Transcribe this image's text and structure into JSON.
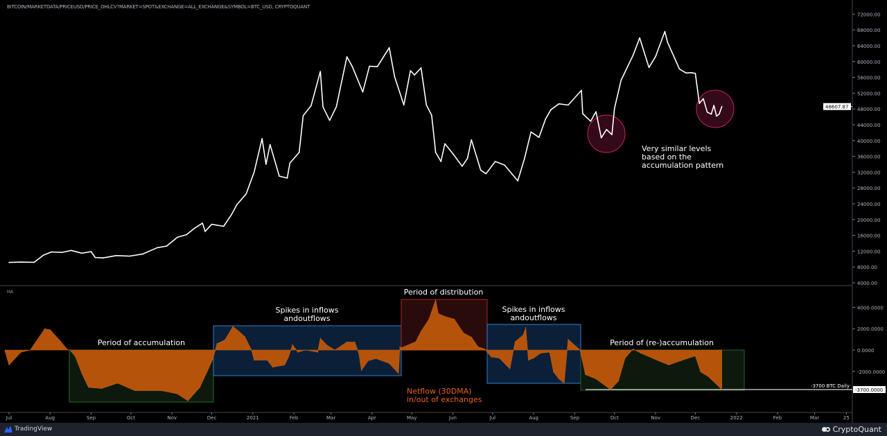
{
  "header": {
    "source": "BITCOIN/MARKETDATA/PRICEUSD/PRICE_OHLCV?MARKET=SPOT&EXCHANGE=ALL_EXCHANGE&SYMBOL=BTC_USD, CRYPTOQUANT"
  },
  "indicator_label": "MA",
  "footer": {
    "left_brand": "TradingView",
    "right_brand": "CryptoQuant"
  },
  "annotations": {
    "accumulation": "Period of accumulation",
    "spikes1_line1": "Spikes in inflows",
    "spikes1_line2": "andoutflows",
    "distribution": "Period of distribution",
    "spikes2_line1": "Spikes in inflows",
    "spikes2_line2": "andoutflows",
    "reaccumulation": "Period of (re-)accumulation",
    "netflow_line1": "Netflow (30DMA)",
    "netflow_line2": "in/out of exchanges",
    "note_line1": "Very similar levels",
    "note_line2": "based on the",
    "note_line3": "accumulation pattern",
    "level_label": "-3700 BTC Daily"
  },
  "colors": {
    "background": "#000000",
    "price_line": "#ffffff",
    "netflow_fill": "#b5530b",
    "netflow_text": "#e8601c",
    "accum_box": "#0c190c",
    "spike_box": "#0b2038",
    "dist_box": "#2a0b0b",
    "circle": "#3a0a1c"
  },
  "chart_data": [
    {
      "type": "line",
      "title": "",
      "ylim": [
        4000,
        72000
      ],
      "y_ticks": [
        "72000.00",
        "68000.00",
        "64000.00",
        "60000.00",
        "56000.00",
        "52000.00",
        "48000.00",
        "44000.00",
        "40000.00",
        "36000.00",
        "32000.00",
        "28000.00",
        "24000.00",
        "20000.00",
        "16000.00",
        "12000.00",
        "8000.00",
        "4000.00"
      ],
      "last_value_label": "48607.87",
      "series": [
        {
          "values": [
            [
              "2020-07-01",
              9150
            ],
            [
              "2020-07-10",
              9250
            ],
            [
              "2020-07-20",
              9200
            ],
            [
              "2020-07-27",
              11000
            ],
            [
              "2020-08-02",
              11800
            ],
            [
              "2020-08-10",
              11700
            ],
            [
              "2020-08-17",
              12200
            ],
            [
              "2020-08-25",
              11500
            ],
            [
              "2020-09-01",
              11900
            ],
            [
              "2020-09-04",
              10400
            ],
            [
              "2020-09-10",
              10300
            ],
            [
              "2020-09-20",
              10900
            ],
            [
              "2020-09-30",
              10750
            ],
            [
              "2020-10-10",
              11300
            ],
            [
              "2020-10-21",
              12900
            ],
            [
              "2020-10-28",
              13300
            ],
            [
              "2020-11-05",
              15500
            ],
            [
              "2020-11-12",
              16200
            ],
            [
              "2020-11-18",
              17800
            ],
            [
              "2020-11-24",
              19100
            ],
            [
              "2020-11-26",
              17000
            ],
            [
              "2020-12-01",
              18800
            ],
            [
              "2020-12-10",
              18300
            ],
            [
              "2020-12-16",
              21300
            ],
            [
              "2020-12-20",
              23800
            ],
            [
              "2020-12-27",
              26500
            ],
            [
              "2021-01-02",
              32000
            ],
            [
              "2021-01-08",
              40500
            ],
            [
              "2021-01-11",
              34000
            ],
            [
              "2021-01-14",
              39000
            ],
            [
              "2021-01-21",
              31000
            ],
            [
              "2021-01-27",
              30500
            ],
            [
              "2021-01-29",
              34300
            ],
            [
              "2021-02-05",
              37000
            ],
            [
              "2021-02-08",
              46300
            ],
            [
              "2021-02-14",
              48800
            ],
            [
              "2021-02-21",
              57500
            ],
            [
              "2021-02-23",
              48500
            ],
            [
              "2021-02-28",
              45100
            ],
            [
              "2021-03-05",
              48500
            ],
            [
              "2021-03-13",
              61200
            ],
            [
              "2021-03-17",
              58800
            ],
            [
              "2021-03-25",
              52300
            ],
            [
              "2021-03-30",
              58800
            ],
            [
              "2021-04-05",
              58700
            ],
            [
              "2021-04-14",
              63500
            ],
            [
              "2021-04-18",
              56200
            ],
            [
              "2021-04-25",
              49000
            ],
            [
              "2021-04-30",
              57700
            ],
            [
              "2021-05-03",
              56600
            ],
            [
              "2021-05-08",
              58400
            ],
            [
              "2021-05-12",
              49000
            ],
            [
              "2021-05-16",
              46400
            ],
            [
              "2021-05-19",
              37000
            ],
            [
              "2021-05-23",
              34700
            ],
            [
              "2021-05-26",
              39200
            ],
            [
              "2021-06-01",
              36700
            ],
            [
              "2021-06-08",
              33500
            ],
            [
              "2021-06-12",
              35500
            ],
            [
              "2021-06-15",
              40200
            ],
            [
              "2021-06-22",
              32500
            ],
            [
              "2021-06-26",
              31600
            ],
            [
              "2021-07-03",
              34700
            ],
            [
              "2021-07-10",
              33800
            ],
            [
              "2021-07-20",
              29800
            ],
            [
              "2021-07-25",
              35400
            ],
            [
              "2021-07-30",
              42200
            ],
            [
              "2021-08-05",
              40800
            ],
            [
              "2021-08-10",
              45500
            ],
            [
              "2021-08-14",
              47800
            ],
            [
              "2021-08-20",
              49300
            ],
            [
              "2021-08-27",
              49000
            ],
            [
              "2021-09-06",
              52700
            ],
            [
              "2021-09-07",
              46800
            ],
            [
              "2021-09-13",
              44900
            ],
            [
              "2021-09-17",
              47300
            ],
            [
              "2021-09-21",
              40700
            ],
            [
              "2021-09-25",
              42800
            ],
            [
              "2021-09-29",
              41500
            ],
            [
              "2021-10-01",
              48200
            ],
            [
              "2021-10-06",
              55300
            ],
            [
              "2021-10-15",
              61600
            ],
            [
              "2021-10-20",
              66000
            ],
            [
              "2021-10-27",
              58500
            ],
            [
              "2021-11-01",
              61300
            ],
            [
              "2021-11-08",
              67600
            ],
            [
              "2021-11-10",
              64900
            ],
            [
              "2021-11-16",
              60400
            ],
            [
              "2021-11-19",
              58100
            ],
            [
              "2021-11-24",
              57100
            ],
            [
              "2021-11-28",
              57200
            ],
            [
              "2021-12-01",
              57000
            ],
            [
              "2021-12-04",
              49400
            ],
            [
              "2021-12-07",
              50600
            ],
            [
              "2021-12-10",
              47200
            ],
            [
              "2021-12-13",
              46700
            ],
            [
              "2021-12-15",
              48900
            ],
            [
              "2021-12-17",
              46200
            ],
            [
              "2021-12-19",
              46700
            ],
            [
              "2021-12-21",
              48607.87
            ]
          ]
        }
      ]
    },
    {
      "type": "area",
      "title": "",
      "ylim": [
        -4000,
        4000
      ],
      "y_ticks": [
        "4000.0000",
        "2000.0000",
        "0.0000",
        "-2000.0000"
      ],
      "last_value_label": "-3700.0000",
      "series": [
        {
          "values": [
            [
              "2020-06-28",
              -100
            ],
            [
              "2020-07-01",
              -1400
            ],
            [
              "2020-07-10",
              -200
            ],
            [
              "2020-07-17",
              0
            ],
            [
              "2020-07-28",
              2000
            ],
            [
              "2020-08-01",
              1900
            ],
            [
              "2020-08-08",
              950
            ],
            [
              "2020-08-14",
              50
            ],
            [
              "2020-08-16",
              0
            ],
            [
              "2020-08-20",
              -600
            ],
            [
              "2020-08-25",
              -2200
            ],
            [
              "2020-08-30",
              -3500
            ],
            [
              "2020-09-09",
              -3600
            ],
            [
              "2020-09-21",
              -3100
            ],
            [
              "2020-10-04",
              -3800
            ],
            [
              "2020-10-24",
              -3800
            ],
            [
              "2020-11-05",
              -4100
            ],
            [
              "2020-11-13",
              -4750
            ],
            [
              "2020-11-22",
              -3500
            ],
            [
              "2020-11-28",
              -1900
            ],
            [
              "2020-12-02",
              -800
            ],
            [
              "2020-12-05",
              600
            ],
            [
              "2020-12-11",
              950
            ],
            [
              "2020-12-17",
              2200
            ],
            [
              "2020-12-22",
              1700
            ],
            [
              "2020-12-26",
              1250
            ],
            [
              "2020-12-31",
              0
            ],
            [
              "2021-01-02",
              -950
            ],
            [
              "2021-01-12",
              -950
            ],
            [
              "2021-01-16",
              -1600
            ],
            [
              "2021-01-25",
              -1400
            ],
            [
              "2021-01-28",
              -630
            ],
            [
              "2021-01-31",
              500
            ],
            [
              "2021-02-04",
              -200
            ],
            [
              "2021-02-10",
              0
            ],
            [
              "2021-02-19",
              -200
            ],
            [
              "2021-02-21",
              1100
            ],
            [
              "2021-02-26",
              450
            ],
            [
              "2021-03-04",
              0
            ],
            [
              "2021-03-13",
              750
            ],
            [
              "2021-03-19",
              750
            ],
            [
              "2021-03-22",
              -300
            ],
            [
              "2021-03-24",
              -1900
            ],
            [
              "2021-03-29",
              -1000
            ],
            [
              "2021-04-04",
              -800
            ],
            [
              "2021-04-14",
              -1250
            ],
            [
              "2021-04-21",
              -2200
            ],
            [
              "2021-04-22",
              300
            ],
            [
              "2021-04-23",
              200
            ],
            [
              "2021-05-04",
              780
            ],
            [
              "2021-05-08",
              1750
            ],
            [
              "2021-05-14",
              2900
            ],
            [
              "2021-05-19",
              4700
            ],
            [
              "2021-05-21",
              3400
            ],
            [
              "2021-05-27",
              3100
            ],
            [
              "2021-06-02",
              2900
            ],
            [
              "2021-06-09",
              1600
            ],
            [
              "2021-06-15",
              1200
            ],
            [
              "2021-06-20",
              300
            ],
            [
              "2021-06-25",
              100
            ],
            [
              "2021-06-30",
              -650
            ],
            [
              "2021-07-06",
              -750
            ],
            [
              "2021-07-14",
              -1750
            ],
            [
              "2021-07-18",
              780
            ],
            [
              "2021-07-24",
              1400
            ],
            [
              "2021-07-26",
              2100
            ],
            [
              "2021-07-28",
              -950
            ],
            [
              "2021-08-01",
              -750
            ],
            [
              "2021-08-06",
              -300
            ],
            [
              "2021-08-13",
              -200
            ],
            [
              "2021-08-16",
              -2050
            ],
            [
              "2021-08-20",
              -2700
            ],
            [
              "2021-08-24",
              -3100
            ],
            [
              "2021-08-27",
              1000
            ],
            [
              "2021-08-31",
              550
            ],
            [
              "2021-09-05",
              0
            ],
            [
              "2021-09-09",
              -2300
            ],
            [
              "2021-09-17",
              -2700
            ],
            [
              "2021-09-28",
              -3700
            ],
            [
              "2021-10-04",
              -2900
            ],
            [
              "2021-10-09",
              -750
            ],
            [
              "2021-10-15",
              100
            ],
            [
              "2021-10-21",
              -300
            ],
            [
              "2021-11-03",
              -1000
            ],
            [
              "2021-11-11",
              -1400
            ],
            [
              "2021-11-20",
              -1000
            ],
            [
              "2021-12-01",
              -550
            ],
            [
              "2021-12-05",
              -2050
            ],
            [
              "2021-12-11",
              -2500
            ],
            [
              "2021-12-21",
              -3700
            ]
          ]
        }
      ]
    }
  ],
  "x_ticks": [
    [
      "2020-07-01",
      "Jul"
    ],
    [
      "2020-08-01",
      "Aug"
    ],
    [
      "2020-09-01",
      "Sep"
    ],
    [
      "2020-10-01",
      "Oct"
    ],
    [
      "2020-11-01",
      "Nov"
    ],
    [
      "2020-12-01",
      "Dec"
    ],
    [
      "2021-01-01",
      "2021"
    ],
    [
      "2021-02-01",
      "Feb"
    ],
    [
      "2021-03-01",
      "Mar"
    ],
    [
      "2021-04-01",
      "Apr"
    ],
    [
      "2021-05-01",
      "May"
    ],
    [
      "2021-06-01",
      "Jun"
    ],
    [
      "2021-07-01",
      "Jul"
    ],
    [
      "2021-08-01",
      "Aug"
    ],
    [
      "2021-09-01",
      "Sep"
    ],
    [
      "2021-10-01",
      "Oct"
    ],
    [
      "2021-11-01",
      "Nov"
    ],
    [
      "2021-12-01",
      "Dec"
    ],
    [
      "2022-01-01",
      "2022"
    ],
    [
      "2022-02-01",
      "Feb"
    ],
    [
      "2022-03-01",
      "Mar"
    ],
    [
      "2022-03-25",
      "25"
    ]
  ]
}
